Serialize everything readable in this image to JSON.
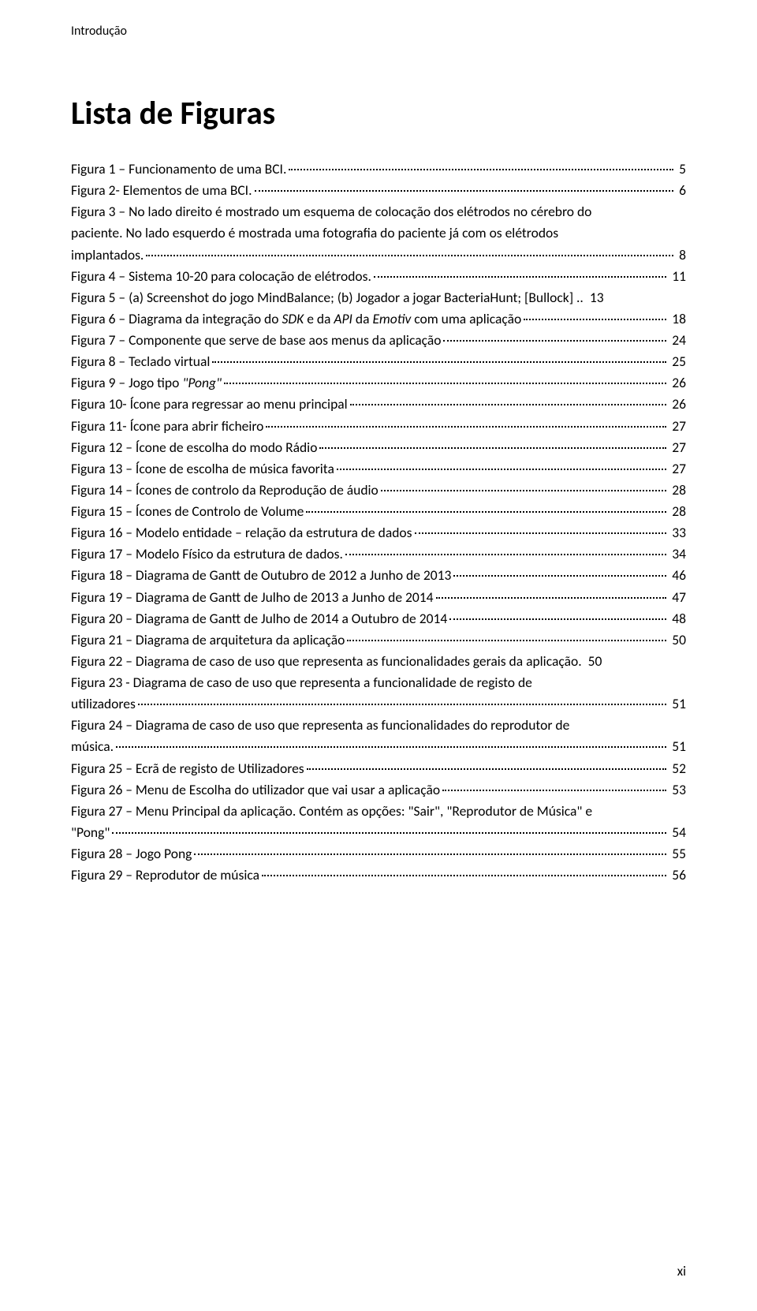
{
  "header": {
    "section_label": "Introdução"
  },
  "title": "Lista de Figuras",
  "entries": [
    {
      "lines": [
        {
          "segments": [
            {
              "t": "Figura 1 – Funcionamento de uma BCI."
            }
          ],
          "page": "5",
          "dots": true
        }
      ]
    },
    {
      "lines": [
        {
          "segments": [
            {
              "t": "Figura 2- Elementos de uma BCI."
            }
          ],
          "page": "6",
          "dots": true
        }
      ]
    },
    {
      "lines": [
        {
          "segments": [
            {
              "t": "Figura 3 – No lado direito é mostrado um esquema de colocação dos elétrodos no cérebro do"
            }
          ],
          "dots": false
        },
        {
          "segments": [
            {
              "t": "paciente. No lado esquerdo é mostrada uma fotografia do paciente já com os elétrodos"
            }
          ],
          "dots": false
        },
        {
          "segments": [
            {
              "t": "implantados."
            }
          ],
          "page": "8",
          "dots": true
        }
      ]
    },
    {
      "lines": [
        {
          "segments": [
            {
              "t": "Figura 4 – Sistema 10-20 para colocação de elétrodos."
            }
          ],
          "page": "11",
          "dots": true
        }
      ]
    },
    {
      "lines": [
        {
          "segments": [
            {
              "t": "Figura 5 – (a) Screenshot do jogo MindBalance; (b) Jogador a jogar BacteriaHunt; [Bullock] .."
            }
          ],
          "page": "13",
          "dots": false
        }
      ]
    },
    {
      "lines": [
        {
          "segments": [
            {
              "t": "Figura 6 – Diagrama da integração do "
            },
            {
              "t": "SDK",
              "italic": true
            },
            {
              "t": " e da "
            },
            {
              "t": "API",
              "italic": true
            },
            {
              "t": " da "
            },
            {
              "t": "Emotiv",
              "italic": true
            },
            {
              "t": " com uma aplicação"
            }
          ],
          "page": "18",
          "dots": true
        }
      ]
    },
    {
      "lines": [
        {
          "segments": [
            {
              "t": "Figura 7 – Componente que serve de base aos menus da aplicação"
            }
          ],
          "page": "24",
          "dots": true
        }
      ]
    },
    {
      "lines": [
        {
          "segments": [
            {
              "t": "Figura 8 – Teclado virtual"
            }
          ],
          "page": "25",
          "dots": true
        }
      ]
    },
    {
      "lines": [
        {
          "segments": [
            {
              "t": "Figura 9 – Jogo tipo "
            },
            {
              "t": "\"Pong\"",
              "italic": true
            }
          ],
          "page": "26",
          "dots": true
        }
      ]
    },
    {
      "lines": [
        {
          "segments": [
            {
              "t": "Figura 10- Ícone para regressar ao menu principal"
            }
          ],
          "page": "26",
          "dots": true
        }
      ]
    },
    {
      "lines": [
        {
          "segments": [
            {
              "t": "Figura 11- Ícone para abrir ficheiro"
            }
          ],
          "page": "27",
          "dots": true
        }
      ]
    },
    {
      "lines": [
        {
          "segments": [
            {
              "t": "Figura 12 – Ícone de escolha do modo Rádio"
            }
          ],
          "page": "27",
          "dots": true
        }
      ]
    },
    {
      "lines": [
        {
          "segments": [
            {
              "t": "Figura 13 – Ícone de escolha de música favorita"
            }
          ],
          "page": "27",
          "dots": true
        }
      ]
    },
    {
      "lines": [
        {
          "segments": [
            {
              "t": "Figura 14 – Ícones de controlo da Reprodução de áudio"
            }
          ],
          "page": "28",
          "dots": true
        }
      ]
    },
    {
      "lines": [
        {
          "segments": [
            {
              "t": "Figura 15 – Ícones de Controlo de Volume"
            }
          ],
          "page": "28",
          "dots": true
        }
      ]
    },
    {
      "lines": [
        {
          "segments": [
            {
              "t": "Figura 16 – Modelo entidade – relação da estrutura de dados"
            }
          ],
          "page": "33",
          "dots": true
        }
      ]
    },
    {
      "lines": [
        {
          "segments": [
            {
              "t": "Figura 17 – Modelo Físico da estrutura de dados."
            }
          ],
          "page": "34",
          "dots": true
        }
      ]
    },
    {
      "lines": [
        {
          "segments": [
            {
              "t": "Figura 18 – Diagrama de Gantt de Outubro de 2012 a Junho de 2013"
            }
          ],
          "page": "46",
          "dots": true
        }
      ]
    },
    {
      "lines": [
        {
          "segments": [
            {
              "t": "Figura 19 – Diagrama de Gantt de Julho de 2013 a Junho de 2014"
            }
          ],
          "page": "47",
          "dots": true
        }
      ]
    },
    {
      "lines": [
        {
          "segments": [
            {
              "t": "Figura 20 – Diagrama de Gantt de Julho de 2014 a Outubro de 2014"
            }
          ],
          "page": "48",
          "dots": true
        }
      ]
    },
    {
      "lines": [
        {
          "segments": [
            {
              "t": "Figura 21 – Diagrama de arquitetura da aplicação"
            }
          ],
          "page": "50",
          "dots": true
        }
      ]
    },
    {
      "lines": [
        {
          "segments": [
            {
              "t": "Figura 22 – Diagrama de caso de uso que representa as funcionalidades gerais da aplicação."
            }
          ],
          "page": "50",
          "dots": false
        }
      ]
    },
    {
      "lines": [
        {
          "segments": [
            {
              "t": "Figura 23 - Diagrama de caso de uso que representa a funcionalidade de registo de"
            }
          ],
          "dots": false
        },
        {
          "segments": [
            {
              "t": "utilizadores"
            }
          ],
          "page": "51",
          "dots": true
        }
      ]
    },
    {
      "lines": [
        {
          "segments": [
            {
              "t": "Figura 24 – Diagrama de caso de uso que representa as funcionalidades do reprodutor de"
            }
          ],
          "dots": false
        },
        {
          "segments": [
            {
              "t": "música."
            }
          ],
          "page": "51",
          "dots": true
        }
      ]
    },
    {
      "lines": [
        {
          "segments": [
            {
              "t": "Figura 25 – Ecrã de registo de Utilizadores"
            }
          ],
          "page": "52",
          "dots": true
        }
      ]
    },
    {
      "lines": [
        {
          "segments": [
            {
              "t": "Figura 26 – Menu de Escolha do utilizador que vai usar a aplicação"
            }
          ],
          "page": "53",
          "dots": true
        }
      ]
    },
    {
      "lines": [
        {
          "segments": [
            {
              "t": "Figura 27 – Menu Principal da aplicação. Contém as opções: \"Sair\", \"Reprodutor de Música\" e"
            }
          ],
          "dots": false
        },
        {
          "segments": [
            {
              "t": "\"Pong\""
            }
          ],
          "page": "54",
          "dots": true
        }
      ]
    },
    {
      "lines": [
        {
          "segments": [
            {
              "t": "Figura 28 – Jogo Pong"
            }
          ],
          "page": "55",
          "dots": true
        }
      ]
    },
    {
      "lines": [
        {
          "segments": [
            {
              "t": "Figura 29 – Reprodutor de música"
            }
          ],
          "page": "56",
          "dots": true
        }
      ]
    }
  ],
  "footer": {
    "page_number": "xi"
  }
}
